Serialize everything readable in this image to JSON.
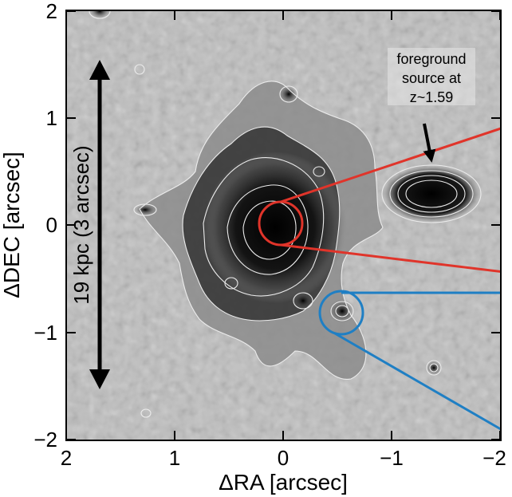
{
  "axes": {
    "x_label": "ΔRA [arcsec]",
    "y_label": "ΔDEC [arcsec]",
    "x_ticks": [
      "2",
      "1",
      "0",
      "−1",
      "−2"
    ],
    "y_ticks": [
      "2",
      "1",
      "0",
      "−1",
      "−2"
    ],
    "x_range": [
      2,
      -2
    ],
    "y_range": [
      -2,
      2
    ]
  },
  "annotations": {
    "foreground_line1": "foreground",
    "foreground_line2": "source at",
    "foreground_line3": "z~1.59",
    "scale_bar_label": "19 kpc (3 arcsec)"
  },
  "colors": {
    "zoom_red": "#e0342a",
    "zoom_blue": "#1f7fc4",
    "contour": "#e8e8e8",
    "background": "#bdbdbd"
  }
}
